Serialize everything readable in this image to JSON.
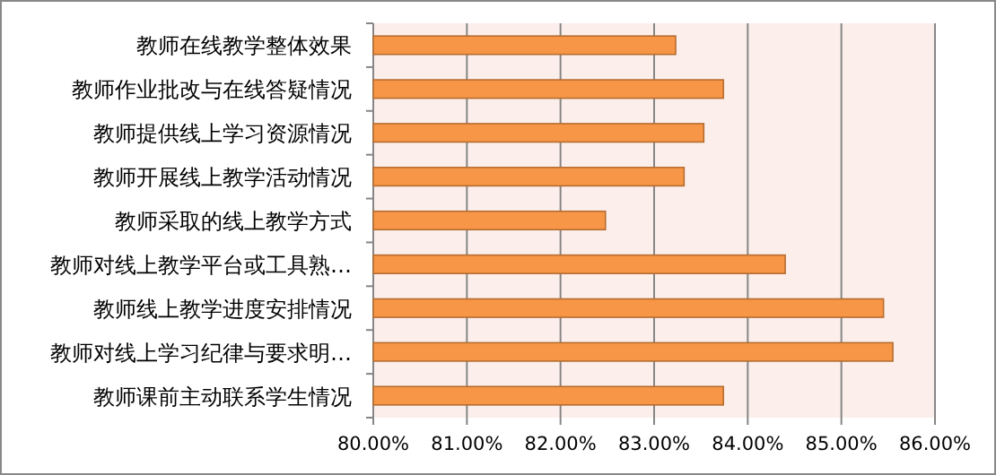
{
  "chart_data": {
    "type": "bar",
    "orientation": "horizontal",
    "categories": [
      "教师在线教学整体效果",
      "教师作业批改与在线答疑情况",
      "教师提供线上学习资源情况",
      "教师开展线上教学活动情况",
      "教师采取的线上教学方式",
      "教师对线上教学平台或工具熟…",
      "教师线上教学进度安排情况",
      "教师对线上学习纪律与要求明…",
      "教师课前主动联系学生情况"
    ],
    "values": [
      83.23,
      83.74,
      83.53,
      83.32,
      82.48,
      84.4,
      85.45,
      85.55,
      83.74
    ],
    "color": "#f79646",
    "xlim": [
      80,
      86
    ],
    "xticks": [
      {
        "value": 80,
        "label": "80.00%"
      },
      {
        "value": 81,
        "label": "81.00%"
      },
      {
        "value": 82,
        "label": "82.00%"
      },
      {
        "value": 83,
        "label": "83.00%"
      },
      {
        "value": 84,
        "label": "84.00%"
      },
      {
        "value": 85,
        "label": "85.00%"
      },
      {
        "value": 86,
        "label": "86.00%"
      }
    ],
    "grid": "x"
  }
}
